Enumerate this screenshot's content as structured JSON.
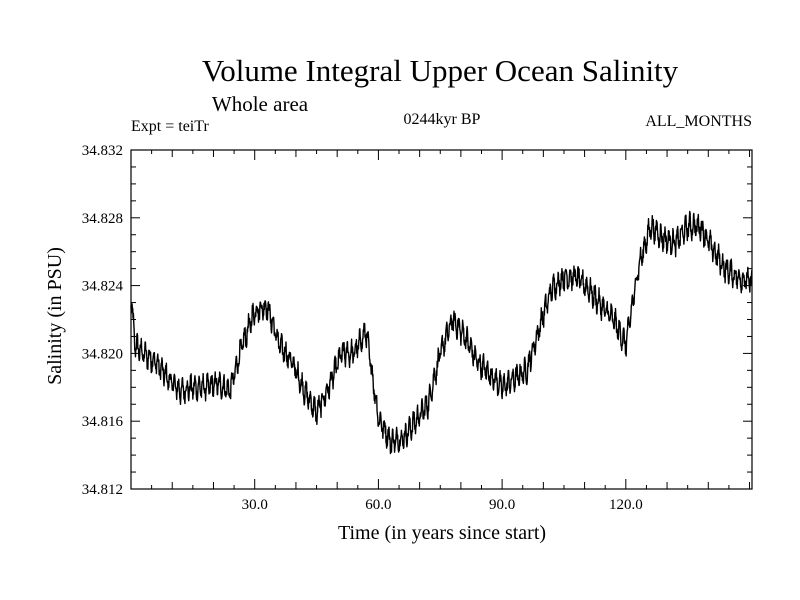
{
  "chart_data": {
    "type": "line",
    "title": "Volume Integral Upper Ocean Salinity",
    "subtitle": "Whole area",
    "experiment_label": "Expt = teiTr",
    "period_label": "0244kyr BP",
    "months_label": "ALL_MONTHS",
    "xlabel": "Time (in years since start)",
    "ylabel": "Salinity (in PSU)",
    "xlim": [
      0,
      150.6
    ],
    "ylim": [
      34.812,
      34.832
    ],
    "xticks": [
      30.0,
      60.0,
      90.0,
      120.0
    ],
    "xtick_labels": [
      "30.0",
      "60.0",
      "90.0",
      "120.0"
    ],
    "yticks": [
      34.812,
      34.816,
      34.82,
      34.824,
      34.828,
      34.832
    ],
    "ytick_labels": [
      "34.812",
      "34.816",
      "34.820",
      "34.824",
      "34.828",
      "34.832"
    ],
    "grid": false,
    "series": [
      {
        "name": "Salinity",
        "sampling": "monthly",
        "trend": {
          "x": [
            0,
            1,
            3,
            6,
            9,
            12,
            15,
            18,
            21,
            24,
            27,
            30,
            33,
            36,
            39,
            42,
            45,
            48,
            51,
            54,
            57,
            60,
            63,
            66,
            69,
            72,
            75,
            78,
            81,
            84,
            87,
            90,
            93,
            96,
            99,
            102,
            105,
            108,
            111,
            114,
            117,
            120,
            123,
            126,
            129,
            132,
            135,
            138,
            141,
            144,
            147,
            150.6
          ],
          "y": [
            34.8232,
            34.8205,
            34.82,
            34.8195,
            34.8185,
            34.8178,
            34.818,
            34.818,
            34.8182,
            34.8178,
            34.8205,
            34.8225,
            34.8228,
            34.8205,
            34.8195,
            34.8178,
            34.8165,
            34.818,
            34.82,
            34.82,
            34.8213,
            34.8162,
            34.8148,
            34.815,
            34.816,
            34.817,
            34.82,
            34.822,
            34.821,
            34.8195,
            34.8188,
            34.818,
            34.8185,
            34.819,
            34.8215,
            34.8238,
            34.8245,
            34.8245,
            34.8238,
            34.8228,
            34.822,
            34.8205,
            34.825,
            34.8275,
            34.8268,
            34.8265,
            34.8275,
            34.8275,
            34.8262,
            34.825,
            34.8245,
            34.8242
          ]
        },
        "monthly_variability_psu": 0.0009
      }
    ]
  }
}
